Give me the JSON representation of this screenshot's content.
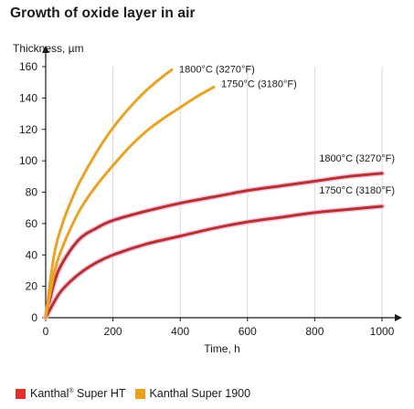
{
  "chart_data": {
    "type": "line",
    "title": "Growth of oxide layer in air",
    "xlabel": "Time, h",
    "ylabel": "Thickness, µm",
    "xlim": [
      0,
      1000
    ],
    "ylim": [
      0,
      160
    ],
    "xticks": [
      0,
      200,
      400,
      600,
      800,
      1000
    ],
    "yticks": [
      0,
      20,
      40,
      60,
      80,
      100,
      120,
      140,
      160
    ],
    "grid": "vertical",
    "legend_position": "bottom",
    "legend": [
      {
        "name": "Kanthal® Super HT",
        "color": "#e0302a"
      },
      {
        "name": "Kanthal Super 1900",
        "color": "#e8a21a"
      }
    ],
    "series": [
      {
        "group": "Kanthal® Super HT",
        "label": "1800°C (3270°F)",
        "color": "#b5332c",
        "x": [
          0,
          25,
          50,
          100,
          150,
          200,
          300,
          400,
          500,
          600,
          700,
          800,
          900,
          1000
        ],
        "values": [
          0,
          22,
          35,
          50,
          57,
          62,
          68,
          73,
          77,
          81,
          84,
          87,
          90,
          92
        ]
      },
      {
        "group": "Kanthal® Super HT",
        "label": "1750°C (3180°F)",
        "color": "#b5332c",
        "x": [
          0,
          25,
          50,
          100,
          150,
          200,
          300,
          400,
          500,
          600,
          700,
          800,
          900,
          1000
        ],
        "values": [
          0,
          10,
          18,
          28,
          35,
          40,
          47,
          52,
          57,
          61,
          64,
          67,
          69,
          71
        ]
      },
      {
        "group": "Kanthal Super 1900",
        "label": "1800°C (3270°F)",
        "color": "#eaa224",
        "x": [
          0,
          25,
          50,
          75,
          100,
          150,
          200,
          250,
          300,
          350,
          375
        ],
        "values": [
          0,
          40,
          60,
          74,
          86,
          105,
          121,
          134,
          145,
          154,
          158
        ]
      },
      {
        "group": "Kanthal Super 1900",
        "label": "1750°C (3180°F)",
        "color": "#eaa224",
        "x": [
          0,
          25,
          50,
          100,
          150,
          200,
          250,
          300,
          350,
          400,
          450,
          500
        ],
        "values": [
          0,
          28,
          45,
          68,
          84,
          97,
          109,
          119,
          127,
          134,
          141,
          147
        ]
      }
    ]
  },
  "legend_labels": {
    "ht_name": "Kanthal",
    "ht_reg": "®",
    "ht_rest": " Super HT",
    "s1900": "Kanthal Super 1900"
  }
}
